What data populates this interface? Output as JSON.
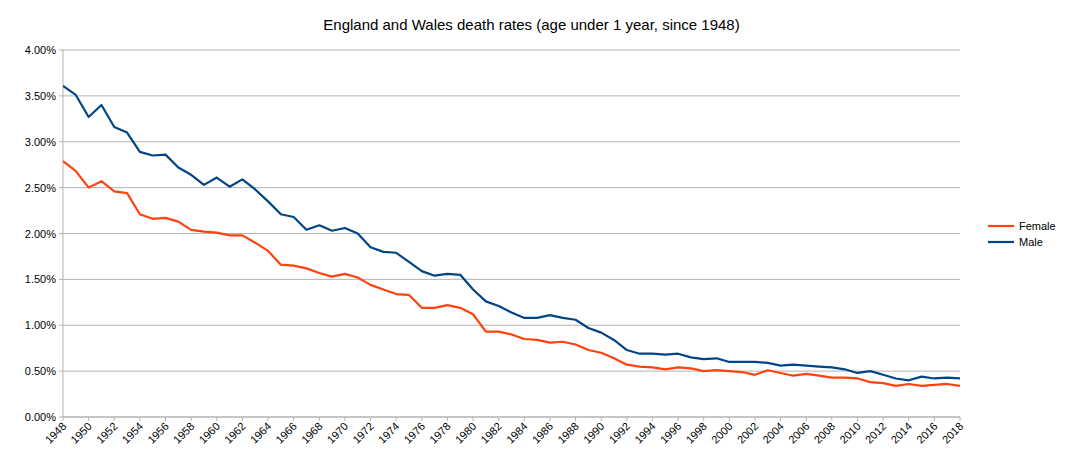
{
  "chart_data": {
    "type": "line",
    "title": "England and Wales death rates (age under 1 year, since 1948)",
    "x": [
      1948,
      1949,
      1950,
      1951,
      1952,
      1953,
      1954,
      1955,
      1956,
      1957,
      1958,
      1959,
      1960,
      1961,
      1962,
      1963,
      1964,
      1965,
      1966,
      1967,
      1968,
      1969,
      1970,
      1971,
      1972,
      1973,
      1974,
      1975,
      1976,
      1977,
      1978,
      1979,
      1980,
      1981,
      1982,
      1983,
      1984,
      1985,
      1986,
      1987,
      1988,
      1989,
      1990,
      1991,
      1992,
      1993,
      1994,
      1995,
      1996,
      1997,
      1998,
      1999,
      2000,
      2001,
      2002,
      2003,
      2004,
      2005,
      2006,
      2007,
      2008,
      2009,
      2010,
      2011,
      2012,
      2013,
      2014,
      2015,
      2016,
      2017,
      2018
    ],
    "series": [
      {
        "name": "Female",
        "color": "#ff420e",
        "values": [
          2.79,
          2.68,
          2.5,
          2.57,
          2.46,
          2.44,
          2.21,
          2.16,
          2.17,
          2.13,
          2.04,
          2.02,
          2.01,
          1.98,
          1.98,
          1.9,
          1.81,
          1.66,
          1.65,
          1.62,
          1.57,
          1.53,
          1.56,
          1.52,
          1.44,
          1.39,
          1.34,
          1.33,
          1.19,
          1.19,
          1.22,
          1.19,
          1.12,
          0.93,
          0.93,
          0.9,
          0.85,
          0.84,
          0.81,
          0.82,
          0.79,
          0.73,
          0.7,
          0.64,
          0.57,
          0.55,
          0.54,
          0.52,
          0.54,
          0.53,
          0.5,
          0.51,
          0.5,
          0.49,
          0.46,
          0.51,
          0.48,
          0.45,
          0.47,
          0.45,
          0.43,
          0.43,
          0.42,
          0.38,
          0.37,
          0.34,
          0.36,
          0.34,
          0.35,
          0.36,
          0.34
        ]
      },
      {
        "name": "Male",
        "color": "#004586",
        "values": [
          3.61,
          3.51,
          3.27,
          3.4,
          3.16,
          3.1,
          2.89,
          2.85,
          2.86,
          2.72,
          2.64,
          2.53,
          2.61,
          2.51,
          2.59,
          2.48,
          2.35,
          2.21,
          2.18,
          2.04,
          2.09,
          2.03,
          2.06,
          2.0,
          1.85,
          1.8,
          1.79,
          1.69,
          1.59,
          1.54,
          1.56,
          1.55,
          1.39,
          1.26,
          1.21,
          1.14,
          1.08,
          1.08,
          1.11,
          1.08,
          1.06,
          0.97,
          0.92,
          0.84,
          0.73,
          0.69,
          0.69,
          0.68,
          0.69,
          0.65,
          0.63,
          0.64,
          0.6,
          0.6,
          0.6,
          0.59,
          0.56,
          0.57,
          0.56,
          0.55,
          0.54,
          0.52,
          0.48,
          0.5,
          0.46,
          0.42,
          0.4,
          0.44,
          0.42,
          0.43,
          0.42
        ]
      }
    ],
    "xlim": [
      1948,
      2018
    ],
    "xticks": [
      1948,
      1950,
      1952,
      1954,
      1956,
      1958,
      1960,
      1962,
      1964,
      1966,
      1968,
      1970,
      1972,
      1974,
      1976,
      1978,
      1980,
      1982,
      1984,
      1986,
      1988,
      1990,
      1992,
      1994,
      1996,
      1998,
      2000,
      2002,
      2004,
      2006,
      2008,
      2010,
      2012,
      2014,
      2016,
      2018
    ],
    "ylim": [
      0,
      4
    ],
    "yticks": [
      {
        "value": 0,
        "label": "0.00%"
      },
      {
        "value": 0.5,
        "label": "0.50%"
      },
      {
        "value": 1,
        "label": "1.00%"
      },
      {
        "value": 1.5,
        "label": "1.50%"
      },
      {
        "value": 2,
        "label": "2.00%"
      },
      {
        "value": 2.5,
        "label": "2.50%"
      },
      {
        "value": 3,
        "label": "3.00%"
      },
      {
        "value": 3.5,
        "label": "3.50%"
      },
      {
        "value": 4,
        "label": "4.00%"
      }
    ],
    "grid": true,
    "legend": "right"
  }
}
